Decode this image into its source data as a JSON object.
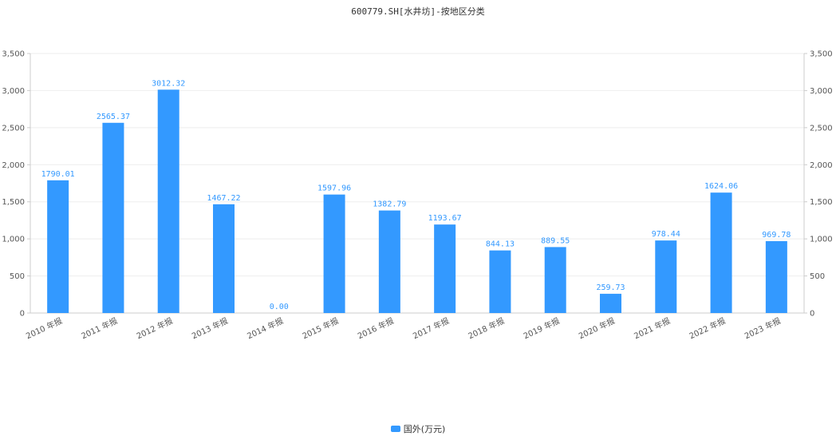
{
  "chart_data": {
    "type": "bar",
    "title": "600779.SH[水井坊]-按地区分类",
    "categories": [
      "2010 年报",
      "2011 年报",
      "2012 年报",
      "2013 年报",
      "2014 年报",
      "2015 年报",
      "2016 年报",
      "2017 年报",
      "2018 年报",
      "2019 年报",
      "2020 年报",
      "2021 年报",
      "2022 年报",
      "2023 年报"
    ],
    "series": [
      {
        "name": "国外(万元)",
        "values": [
          1790.01,
          2565.37,
          3012.32,
          1467.22,
          0.0,
          1597.96,
          1382.79,
          1193.67,
          844.13,
          889.55,
          259.73,
          978.44,
          1624.06,
          969.78
        ],
        "labels": [
          "1790.01",
          "2565.37",
          "3012.32",
          "1467.22",
          "0.00",
          "1597.96",
          "1382.79",
          "1193.67",
          "844.13",
          "889.55",
          "259.73",
          "978.44",
          "1624.06",
          "969.78"
        ],
        "color": "#3399ff"
      }
    ],
    "ylim": [
      0,
      3500
    ],
    "yticks": [
      0,
      500,
      1000,
      1500,
      2000,
      2500,
      3000,
      3500
    ],
    "ytick_labels": [
      "0",
      "500",
      "1,000",
      "1,500",
      "2,000",
      "2,500",
      "3,000",
      "3,500"
    ],
    "dual_y_axis": true,
    "grid": true,
    "legend_position": "bottom-center",
    "colors": {
      "bar": "#3399ff",
      "label": "#3399ff",
      "axis": "#cccccc",
      "grid": "#eeeeee",
      "tick_text": "#555555"
    }
  }
}
